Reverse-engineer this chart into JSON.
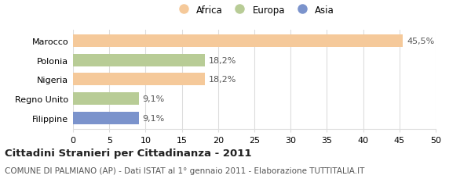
{
  "categories": [
    "Marocco",
    "Polonia",
    "Nigeria",
    "Regno Unito",
    "Filippine"
  ],
  "values": [
    45.5,
    18.2,
    18.2,
    9.1,
    9.1
  ],
  "labels": [
    "45,5%",
    "18,2%",
    "18,2%",
    "9,1%",
    "9,1%"
  ],
  "bar_colors": [
    "#f5c99a",
    "#b8cc96",
    "#f5c99a",
    "#b8cc96",
    "#7b93cc"
  ],
  "legend_labels": [
    "Africa",
    "Europa",
    "Asia"
  ],
  "legend_colors": [
    "#f5c99a",
    "#b8cc96",
    "#7b93cc"
  ],
  "xlim": [
    0,
    50
  ],
  "xticks": [
    0,
    5,
    10,
    15,
    20,
    25,
    30,
    35,
    40,
    45,
    50
  ],
  "title": "Cittadini Stranieri per Cittadinanza - 2011",
  "subtitle": "COMUNE DI PALMIANO (AP) - Dati ISTAT al 1° gennaio 2011 - Elaborazione TUTTITALIA.IT",
  "background_color": "#ffffff",
  "grid_color": "#dddddd",
  "label_fontsize": 8,
  "value_fontsize": 8,
  "title_fontsize": 9.5,
  "subtitle_fontsize": 7.5
}
